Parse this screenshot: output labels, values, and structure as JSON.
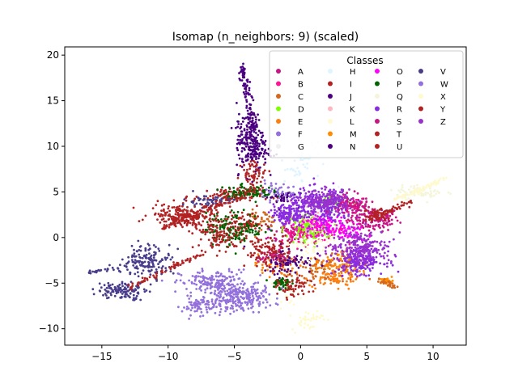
{
  "chart_data": {
    "type": "scatter",
    "title": "Isomap (n_neighbors: 9) (scaled)",
    "xlabel": "",
    "ylabel": "",
    "xlim": [
      -17.8,
      12.5
    ],
    "ylim": [
      -11.8,
      20.9
    ],
    "x_ticks": [
      -15,
      -10,
      -5,
      0,
      5,
      10
    ],
    "y_ticks": [
      -10,
      -5,
      0,
      5,
      10,
      15,
      20
    ],
    "grid": false,
    "legend": {
      "title": "Classes",
      "position": "top-right",
      "columns": 5
    },
    "series": [
      {
        "name": "A",
        "color": "#c71585",
        "clusters": [
          [
            5.5,
            2.0,
            1.6,
            1.1,
            150
          ],
          [
            -0.5,
            0.5,
            1.6,
            1.2,
            80
          ]
        ]
      },
      {
        "name": "B",
        "color": "#ff1493",
        "clusters": [
          [
            1.0,
            0.8,
            2.0,
            1.0,
            120
          ],
          [
            3.5,
            3.5,
            1.2,
            0.8,
            60
          ]
        ]
      },
      {
        "name": "C",
        "color": "#d2691e",
        "clusters": [
          [
            2.0,
            -3.5,
            2.0,
            1.2,
            100
          ],
          [
            -3.0,
            2.0,
            1.2,
            0.8,
            40
          ]
        ]
      },
      {
        "name": "D",
        "color": "#7fff00",
        "clusters": [
          [
            0.5,
            1.0,
            1.5,
            1.5,
            90
          ],
          [
            2.5,
            4.0,
            1.2,
            0.6,
            40
          ]
        ]
      },
      {
        "name": "E",
        "color": "#ff7f0e",
        "clusters": [
          [
            2.5,
            -4.0,
            1.6,
            1.4,
            100
          ],
          [
            -2.0,
            -3.0,
            1.2,
            1.0,
            50
          ]
        ]
      },
      {
        "name": "F",
        "color": "#9370db",
        "clusters": [
          [
            -6.5,
            -5.0,
            2.2,
            1.2,
            180
          ],
          [
            -4.8,
            -6.8,
            1.6,
            1.0,
            120
          ],
          [
            -7.5,
            -7.5,
            1.2,
            0.8,
            80
          ]
        ]
      },
      {
        "name": "G",
        "color": "#f0f0f0",
        "clusters": [
          [
            1.5,
            4.0,
            2.0,
            1.0,
            40
          ]
        ]
      },
      {
        "name": "H",
        "color": "#e0f4ff",
        "clusters": [
          [
            0.5,
            9.0,
            1.2,
            1.5,
            40
          ],
          [
            -0.5,
            7.0,
            1.0,
            1.0,
            20
          ]
        ]
      },
      {
        "name": "I",
        "color": "#b22222",
        "clusters": [
          [
            -9.0,
            2.5,
            2.0,
            1.0,
            150
          ],
          [
            -5.5,
            4.5,
            2.2,
            0.8,
            100
          ],
          [
            -4.5,
            1.5,
            1.5,
            1.0,
            80
          ]
        ]
      },
      {
        "name": "J",
        "color": "#4b0082",
        "clusters": [
          [
            -3.8,
            11.0,
            0.9,
            3.2,
            160
          ],
          [
            -1.0,
            -2.5,
            1.6,
            1.2,
            90
          ]
        ]
      },
      {
        "name": "K",
        "color": "#ffb6c1",
        "clusters": [
          [
            0.5,
            2.0,
            1.5,
            1.5,
            40
          ]
        ]
      },
      {
        "name": "L",
        "color": "#fffacd",
        "clusters": [
          [
            0.5,
            -9.0,
            1.0,
            1.0,
            40
          ],
          [
            -1.0,
            -6.0,
            0.8,
            1.0,
            20
          ]
        ]
      },
      {
        "name": "M",
        "color": "#ff8c00",
        "clusters": [
          [
            6.5,
            -4.8,
            0.4,
            0.3,
            40
          ],
          [
            3.0,
            -2.5,
            1.5,
            1.0,
            40
          ]
        ]
      },
      {
        "name": "N",
        "color": "#4b0082",
        "clusters": [
          [
            -3.5,
            9.5,
            1.0,
            1.5,
            80
          ],
          [
            -1.5,
            4.5,
            1.0,
            0.8,
            40
          ]
        ]
      },
      {
        "name": "O",
        "color": "#ff00ff",
        "clusters": [
          [
            1.5,
            1.5,
            1.5,
            1.0,
            100
          ],
          [
            3.5,
            0.5,
            1.2,
            0.8,
            50
          ]
        ]
      },
      {
        "name": "P",
        "color": "#006400",
        "clusters": [
          [
            -5.0,
            1.0,
            1.8,
            1.5,
            140
          ],
          [
            -4.0,
            5.0,
            1.6,
            0.6,
            90
          ],
          [
            -1.5,
            -5.0,
            0.6,
            0.6,
            50
          ]
        ]
      },
      {
        "name": "Q",
        "color": "#f5f5dc",
        "clusters": [
          [
            9.0,
            5.0,
            1.5,
            0.6,
            70
          ]
        ]
      },
      {
        "name": "R",
        "color": "#8a2be2",
        "clusters": [
          [
            1.5,
            3.5,
            2.0,
            1.5,
            300
          ],
          [
            4.5,
            -2.5,
            1.5,
            1.2,
            200
          ],
          [
            -1.0,
            2.5,
            1.0,
            1.0,
            120
          ]
        ]
      },
      {
        "name": "S",
        "color": "#c71585",
        "clusters": [
          [
            4.0,
            3.5,
            1.2,
            1.0,
            80
          ],
          [
            -2.0,
            -2.0,
            1.0,
            1.0,
            40
          ]
        ]
      },
      {
        "name": "T",
        "color": "#b22222",
        "clusters": [
          [
            -2.5,
            -1.5,
            1.5,
            1.5,
            100
          ],
          [
            -0.5,
            -5.5,
            1.0,
            1.0,
            60
          ]
        ]
      },
      {
        "name": "U",
        "color": "#b22222",
        "clusters": [
          [
            -8.0,
            2.0,
            2.0,
            1.0,
            80
          ],
          [
            -3.5,
            7.0,
            0.8,
            1.2,
            60
          ]
        ]
      },
      {
        "name": "V",
        "color": "#483d8b",
        "clusters": [
          [
            -11.5,
            -2.5,
            1.5,
            1.5,
            150
          ],
          [
            -13.5,
            -5.8,
            1.5,
            0.8,
            120
          ],
          [
            -7.0,
            4.0,
            1.5,
            0.6,
            50
          ]
        ]
      },
      {
        "name": "W",
        "color": "#9370db",
        "clusters": [
          [
            -4.0,
            -6.5,
            1.8,
            1.2,
            100
          ],
          [
            -2.0,
            5.0,
            1.2,
            0.8,
            40
          ]
        ]
      },
      {
        "name": "X",
        "color": "#fffacd",
        "clusters": [
          [
            1.0,
            -1.0,
            1.5,
            1.5,
            40
          ]
        ]
      },
      {
        "name": "Y",
        "color": "#b22222",
        "clusters": [
          [
            -6.0,
            0.0,
            1.5,
            1.0,
            80
          ],
          [
            6.0,
            2.5,
            1.0,
            0.8,
            40
          ]
        ]
      },
      {
        "name": "Z",
        "color": "#9932cc",
        "clusters": [
          [
            4.5,
            -1.0,
            2.0,
            1.5,
            200
          ],
          [
            2.0,
            4.0,
            1.5,
            1.0,
            150
          ]
        ]
      }
    ],
    "streaks": [
      {
        "color": "#4b0082",
        "from": [
          -4.5,
          19.0
        ],
        "to": [
          -3.5,
          12.0
        ],
        "count": 80
      },
      {
        "color": "#483d8b",
        "from": [
          -16.0,
          -3.8
        ],
        "to": [
          -13.0,
          -3.2
        ],
        "count": 30
      },
      {
        "color": "#b22222",
        "from": [
          -13.0,
          -5.5
        ],
        "to": [
          -7.0,
          -1.5
        ],
        "count": 70
      },
      {
        "color": "#b22222",
        "from": [
          -10.5,
          1.0
        ],
        "to": [
          -3.0,
          5.5
        ],
        "count": 90
      },
      {
        "color": "#fffacd",
        "from": [
          7.0,
          4.0
        ],
        "to": [
          11.0,
          6.5
        ],
        "count": 70
      },
      {
        "color": "#b22222",
        "from": [
          5.0,
          2.0
        ],
        "to": [
          8.5,
          4.0
        ],
        "count": 50
      },
      {
        "color": "#d2691e",
        "from": [
          5.5,
          -4.5
        ],
        "to": [
          7.2,
          -5.4
        ],
        "count": 25
      }
    ]
  }
}
